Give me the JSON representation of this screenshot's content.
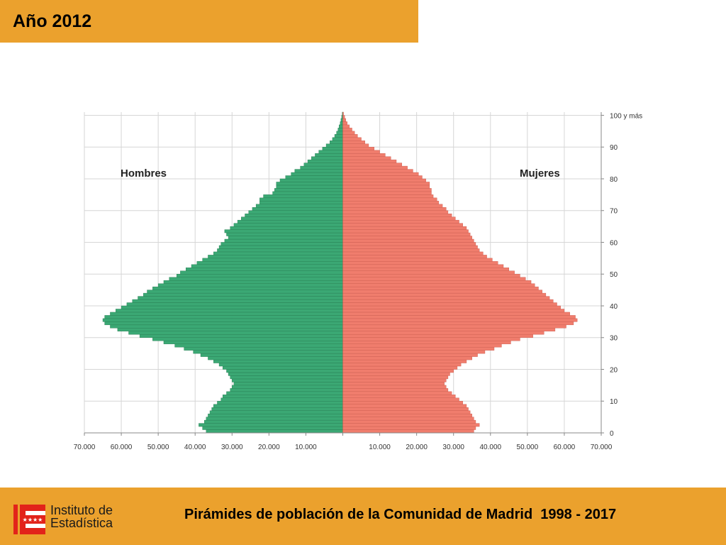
{
  "slide": {
    "title": "Año 2012",
    "footer_title": "Pirámides de población de la Comunidad de Madrid  1998 - 2017",
    "logo_text_line1": "Instituto de",
    "logo_text_line2": "Estadística"
  },
  "colors": {
    "accent": "#EBA12D",
    "men": "#3BA874",
    "men_stroke": "#257a50",
    "women": "#F07D6D",
    "women_stroke": "#c85a4d",
    "grid": "#d6d6d6",
    "logo_red": "#E2231A"
  },
  "chart_data": {
    "type": "bar",
    "orientation": "horizontal",
    "kind": "population-pyramid",
    "year": "2012",
    "ages": [
      0,
      1,
      2,
      3,
      4,
      5,
      6,
      7,
      8,
      9,
      10,
      11,
      12,
      13,
      14,
      15,
      16,
      17,
      18,
      19,
      20,
      21,
      22,
      23,
      24,
      25,
      26,
      27,
      28,
      29,
      30,
      31,
      32,
      33,
      34,
      35,
      36,
      37,
      38,
      39,
      40,
      41,
      42,
      43,
      44,
      45,
      46,
      47,
      48,
      49,
      50,
      51,
      52,
      53,
      54,
      55,
      56,
      57,
      58,
      59,
      60,
      61,
      62,
      63,
      64,
      65,
      66,
      67,
      68,
      69,
      70,
      71,
      72,
      73,
      74,
      75,
      76,
      77,
      78,
      79,
      80,
      81,
      82,
      83,
      84,
      85,
      86,
      87,
      88,
      89,
      90,
      91,
      92,
      93,
      94,
      95,
      96,
      97,
      98,
      99,
      100
    ],
    "series": [
      {
        "name": "Hombres",
        "values": [
          37000,
          38000,
          39000,
          37500,
          37000,
          36500,
          36000,
          35500,
          35000,
          34000,
          33000,
          32500,
          31500,
          30500,
          30000,
          29500,
          30000,
          30500,
          31000,
          31500,
          32500,
          33500,
          35000,
          36500,
          38500,
          40500,
          43000,
          45500,
          48500,
          51500,
          55000,
          58000,
          61000,
          63000,
          64500,
          65000,
          64500,
          63000,
          61500,
          60000,
          58500,
          57000,
          55500,
          54000,
          53000,
          51500,
          50000,
          48500,
          47000,
          45000,
          44000,
          42500,
          41000,
          39500,
          38000,
          36500,
          35000,
          34000,
          33500,
          33000,
          32000,
          31000,
          31500,
          32000,
          30500,
          29500,
          28500,
          27500,
          26500,
          25500,
          24500,
          23500,
          22500,
          22500,
          21500,
          19000,
          18500,
          18000,
          18000,
          17000,
          15500,
          14000,
          13000,
          11500,
          10500,
          9500,
          8500,
          7500,
          6500,
          5500,
          4500,
          3500,
          2800,
          2200,
          1700,
          1300,
          1000,
          700,
          500,
          300,
          150
        ]
      },
      {
        "name": "Mujeres",
        "values": [
          35500,
          36000,
          37000,
          36000,
          35500,
          35000,
          34500,
          34000,
          33500,
          32500,
          31500,
          30500,
          29500,
          28500,
          28000,
          27500,
          28000,
          28500,
          29000,
          30000,
          31000,
          32000,
          33500,
          35000,
          36500,
          38500,
          41000,
          43000,
          45500,
          48000,
          51500,
          54500,
          57500,
          60500,
          62500,
          63500,
          63000,
          61500,
          60000,
          59000,
          58000,
          57000,
          56000,
          55000,
          54000,
          53000,
          52000,
          51000,
          49500,
          48000,
          46500,
          45000,
          43500,
          42000,
          40500,
          39000,
          38000,
          37000,
          36500,
          36000,
          35500,
          35000,
          34500,
          34000,
          33500,
          32500,
          31500,
          30500,
          29500,
          28500,
          28000,
          27000,
          26000,
          25500,
          24500,
          24000,
          24000,
          23500,
          23500,
          22500,
          21500,
          20500,
          19000,
          17500,
          16000,
          14500,
          13000,
          11500,
          10000,
          8500,
          7000,
          6000,
          5000,
          4000,
          3200,
          2500,
          1800,
          1200,
          800,
          500,
          200
        ]
      }
    ],
    "annotations": [
      "Hombres",
      "Mujeres"
    ],
    "x_tick_labels_left": [
      "70.000",
      "60.000",
      "50.000",
      "40.000",
      "30.000",
      "20.000",
      "10.000"
    ],
    "x_tick_labels_right": [
      "10.000",
      "20.000",
      "30.000",
      "40.000",
      "50.000",
      "60.000",
      "70.000"
    ],
    "y_tick_labels": [
      "0",
      "10",
      "20",
      "30",
      "40",
      "50",
      "60",
      "70",
      "80",
      "90",
      "100 y más"
    ],
    "xlim": [
      -70000,
      70000
    ],
    "ylim": [
      0,
      100
    ],
    "grid": true
  }
}
